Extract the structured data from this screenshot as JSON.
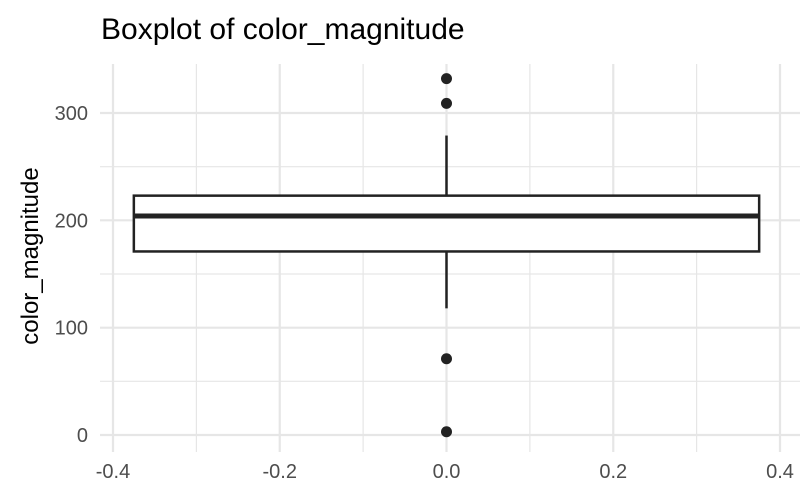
{
  "chart_data": {
    "type": "boxplot",
    "title": "Boxplot of color_magnitude",
    "xlabel": "",
    "ylabel": "color_magnitude",
    "xlim": [
      -0.4,
      0.4
    ],
    "ylim": [
      0,
      340
    ],
    "x_ticks": [
      {
        "value": -0.4,
        "label": "-0.4"
      },
      {
        "value": -0.2,
        "label": "-0.2"
      },
      {
        "value": 0.0,
        "label": "0.0"
      },
      {
        "value": 0.2,
        "label": "0.2"
      },
      {
        "value": 0.4,
        "label": "0.4"
      }
    ],
    "y_ticks": [
      {
        "value": 0,
        "label": "0"
      },
      {
        "value": 100,
        "label": "100"
      },
      {
        "value": 200,
        "label": "200"
      },
      {
        "value": 300,
        "label": "300"
      }
    ],
    "x_minor_ticks": [
      -0.3,
      -0.1,
      0.1,
      0.3
    ],
    "y_minor_ticks": [
      50,
      150,
      250
    ],
    "grid": true,
    "box": {
      "x_center": 0.0,
      "x_left": -0.375,
      "x_right": 0.375,
      "q1": 171,
      "median": 204,
      "q3": 223,
      "whisker_low": 118,
      "whisker_high": 279
    },
    "outliers": [
      {
        "x": 0.0,
        "y": 332
      },
      {
        "x": 0.0,
        "y": 309
      },
      {
        "x": 0.0,
        "y": 71
      },
      {
        "x": 0.0,
        "y": 3
      }
    ],
    "colors": {
      "box_line": "#222222",
      "grid": "#e6e6e6",
      "text": "#000000",
      "tick_text": "#4d4d4d"
    }
  }
}
